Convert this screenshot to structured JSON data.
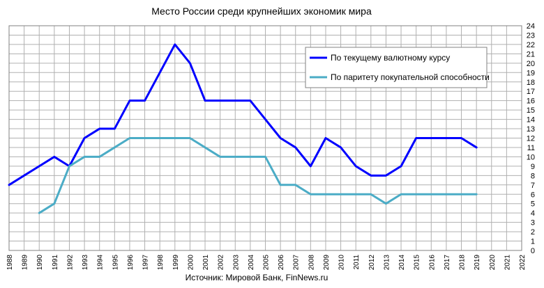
{
  "chart_data": {
    "type": "line",
    "title": "Место России среди крупнейших экономик мира",
    "source": "Источник: Мировой Банк, FinNews.ru",
    "x": [
      1988,
      1989,
      1990,
      1991,
      1992,
      1993,
      1994,
      1995,
      1996,
      1997,
      1998,
      1999,
      2000,
      2001,
      2002,
      2003,
      2004,
      2005,
      2006,
      2007,
      2008,
      2009,
      2010,
      2011,
      2012,
      2013,
      2014,
      2015,
      2016,
      2017,
      2018,
      2019,
      2020,
      2021,
      2022
    ],
    "xlim": [
      1988,
      2022
    ],
    "ylim": [
      0,
      24
    ],
    "y_axis_side": "right",
    "grid": true,
    "legend_position": "top-right",
    "series": [
      {
        "name": "По текущему валютному курсу",
        "color": "#0000ff",
        "points": [
          [
            1988,
            7
          ],
          [
            1989,
            8
          ],
          [
            1990,
            9
          ],
          [
            1991,
            10
          ],
          [
            1992,
            9
          ],
          [
            1993,
            12
          ],
          [
            1994,
            13
          ],
          [
            1995,
            13
          ],
          [
            1996,
            16
          ],
          [
            1997,
            16
          ],
          [
            1998,
            19
          ],
          [
            1999,
            22
          ],
          [
            2000,
            20
          ],
          [
            2001,
            16
          ],
          [
            2002,
            16
          ],
          [
            2003,
            16
          ],
          [
            2004,
            16
          ],
          [
            2005,
            14
          ],
          [
            2006,
            12
          ],
          [
            2007,
            11
          ],
          [
            2008,
            9
          ],
          [
            2009,
            12
          ],
          [
            2010,
            11
          ],
          [
            2011,
            9
          ],
          [
            2012,
            8
          ],
          [
            2013,
            8
          ],
          [
            2014,
            9
          ],
          [
            2015,
            12
          ],
          [
            2016,
            12
          ],
          [
            2017,
            12
          ],
          [
            2018,
            12
          ],
          [
            2019,
            11
          ]
        ]
      },
      {
        "name": "По паритету покупательной способности",
        "color": "#4bacc6",
        "points": [
          [
            1990,
            4
          ],
          [
            1991,
            5
          ],
          [
            1992,
            9
          ],
          [
            1993,
            10
          ],
          [
            1994,
            10
          ],
          [
            1995,
            11
          ],
          [
            1996,
            12
          ],
          [
            1997,
            12
          ],
          [
            1998,
            12
          ],
          [
            1999,
            12
          ],
          [
            2000,
            12
          ],
          [
            2001,
            11
          ],
          [
            2002,
            10
          ],
          [
            2003,
            10
          ],
          [
            2004,
            10
          ],
          [
            2005,
            10
          ],
          [
            2006,
            7
          ],
          [
            2007,
            7
          ],
          [
            2008,
            6
          ],
          [
            2009,
            6
          ],
          [
            2010,
            6
          ],
          [
            2011,
            6
          ],
          [
            2012,
            6
          ],
          [
            2013,
            5
          ],
          [
            2014,
            6
          ],
          [
            2015,
            6
          ],
          [
            2016,
            6
          ],
          [
            2017,
            6
          ],
          [
            2018,
            6
          ],
          [
            2019,
            6
          ]
        ]
      }
    ]
  }
}
